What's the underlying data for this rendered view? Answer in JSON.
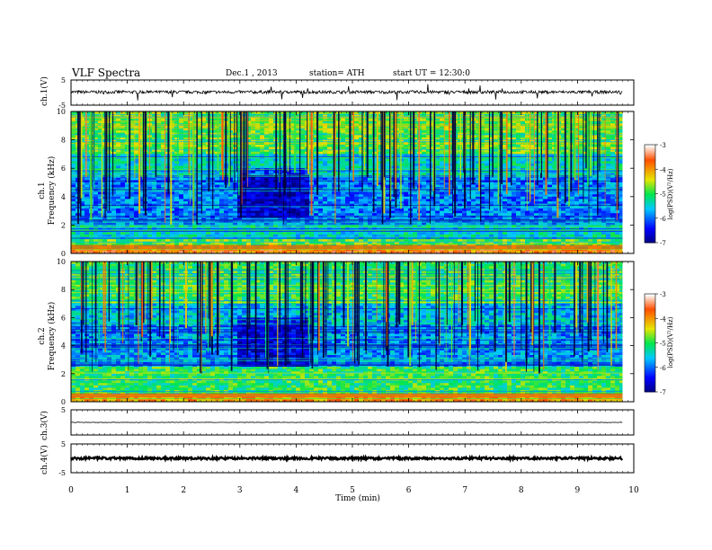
{
  "header": {
    "title": "VLF  Spectra",
    "date": "Dec.1  , 2013",
    "station": "station= ATH",
    "start": "start  UT  =    12:30:0"
  },
  "chart_data": [
    {
      "type": "line",
      "id": "ch1",
      "ylabel": "ch.1(V)",
      "ylim": [
        -5,
        5
      ],
      "yticks": [
        "5",
        "-5"
      ],
      "series": [
        {
          "values_summary": {
            "baseline": 0.2,
            "fluctuation": 0.6,
            "max_spike": 3.5
          }
        }
      ]
    },
    {
      "type": "heatmap",
      "id": "spec1",
      "ylabel_channel": "ch.1",
      "ylabel": "Frequency  (kHz)",
      "ylim": [
        0,
        10
      ],
      "yticks": [
        "0",
        "2",
        "4",
        "6",
        "8",
        "10"
      ],
      "colorbar": {
        "label": "log(PSD)(V²/Hz)",
        "range": [
          -7,
          -3
        ],
        "ticks": [
          "-3",
          "-4",
          "-5",
          "-6",
          "-7"
        ]
      },
      "bands_khz": [
        {
          "from": 0,
          "to": 0.3,
          "value": -3.8
        },
        {
          "from": 0.3,
          "to": 1.0,
          "value": -4.8
        },
        {
          "from": 1.0,
          "to": 2.0,
          "value": -5.4
        },
        {
          "from": 2.0,
          "to": 5.5,
          "value": -5.9
        },
        {
          "from": 5.5,
          "to": 7.0,
          "value": -5.4
        },
        {
          "from": 7.0,
          "to": 10,
          "value": -4.8
        }
      ],
      "quiet_interval_min": [
        2.9,
        4.2
      ]
    },
    {
      "type": "heatmap",
      "id": "spec2",
      "ylabel_channel": "ch.2",
      "ylabel": "Frequency  (kHz)",
      "ylim": [
        0,
        10
      ],
      "yticks": [
        "0",
        "2",
        "4",
        "6",
        "8",
        "10"
      ],
      "colorbar": {
        "label": "log(PSD)(V²/Hz)",
        "range": [
          -7,
          -3
        ],
        "ticks": [
          "-3",
          "-4",
          "-5",
          "-6",
          "-7"
        ]
      },
      "bands_khz": [
        {
          "from": 0,
          "to": 0.3,
          "value": -4.0
        },
        {
          "from": 0.3,
          "to": 2.5,
          "value": -5.0
        },
        {
          "from": 2.5,
          "to": 5.5,
          "value": -5.8
        },
        {
          "from": 5.5,
          "to": 7.0,
          "value": -5.6
        },
        {
          "from": 7.0,
          "to": 10,
          "value": -5.0
        }
      ],
      "quiet_interval_min": [
        2.9,
        4.2
      ]
    },
    {
      "type": "line",
      "id": "ch3",
      "ylabel": "ch.3(V)",
      "ylim": [
        -5,
        5
      ],
      "yticks": [
        "5"
      ],
      "series": [
        {
          "values_summary": {
            "baseline": 0,
            "fluctuation": 0.1
          }
        }
      ]
    },
    {
      "type": "line",
      "id": "ch4",
      "ylabel": "ch.4(V)",
      "ylim": [
        -5,
        5
      ],
      "yticks": [
        "5",
        "-5"
      ],
      "series": [
        {
          "values_summary": {
            "baseline": 0,
            "fluctuation": 0.4
          }
        }
      ]
    }
  ],
  "xaxis": {
    "xlabel": "Time  (min)",
    "xlim": [
      0,
      10
    ],
    "ticks": [
      "0",
      "1",
      "2",
      "3",
      "4",
      "5",
      "6",
      "7",
      "8",
      "9",
      "10"
    ],
    "data_end_min": 9.8
  }
}
